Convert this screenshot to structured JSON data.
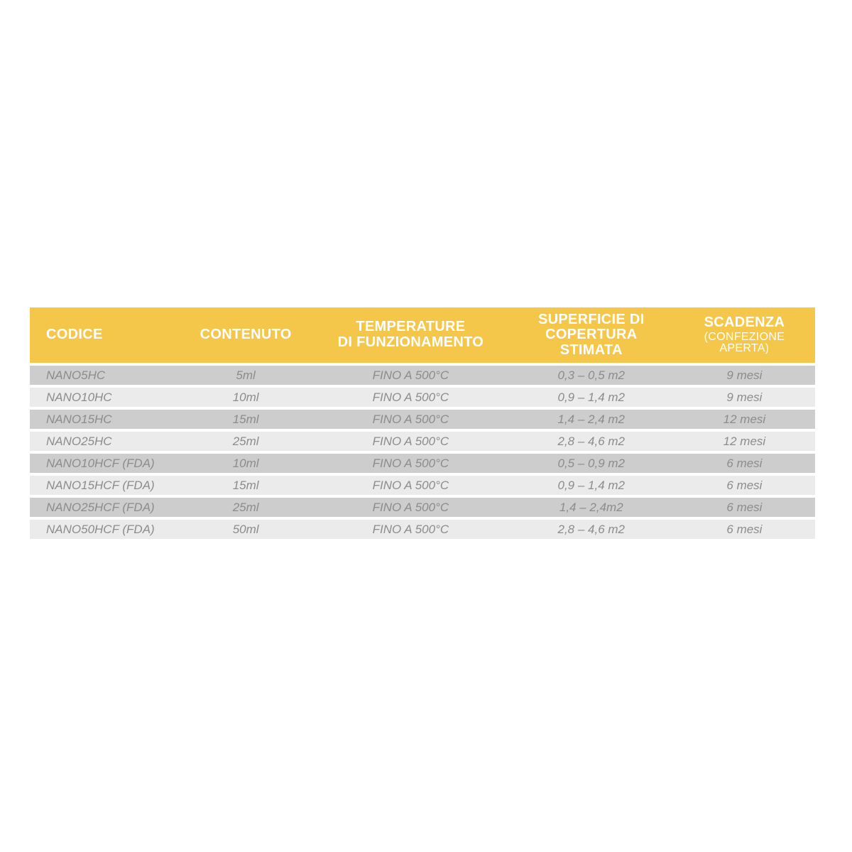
{
  "colors": {
    "header_bg": "#F4C649",
    "header_text": "#FFFFFF",
    "row_dark_bg": "#CDCDCD",
    "row_light_bg": "#EBEBEB",
    "row_text": "#8C8C8C",
    "page_bg": "#FFFFFF"
  },
  "table": {
    "header": {
      "codice": "CODICE",
      "contenuto": "CONTENUTO",
      "temperature_lines": [
        "TEMPERATURE",
        "DI FUNZIONAMENTO"
      ],
      "superficie_lines": [
        "SUPERFICIE DI",
        "COPERTURA",
        "STIMATA"
      ],
      "scadenza": "SCADENZA",
      "scadenza_sub": "(CONFEZIONE APERTA)"
    },
    "rows": [
      {
        "codice": "NANO5HC",
        "contenuto": "5ml",
        "temperature": "FINO A 500°C",
        "superficie": "0,3 – 0,5 m2",
        "scadenza": "9 mesi"
      },
      {
        "codice": "NANO10HC",
        "contenuto": "10ml",
        "temperature": "FINO A 500°C",
        "superficie": "0,9 – 1,4 m2",
        "scadenza": "9 mesi"
      },
      {
        "codice": "NANO15HC",
        "contenuto": "15ml",
        "temperature": "FINO A 500°C",
        "superficie": "1,4 – 2,4 m2",
        "scadenza": "12 mesi"
      },
      {
        "codice": "NANO25HC",
        "contenuto": "25ml",
        "temperature": "FINO A 500°C",
        "superficie": "2,8 – 4,6 m2",
        "scadenza": "12 mesi"
      },
      {
        "codice": "NANO10HCF (FDA)",
        "contenuto": "10ml",
        "temperature": "FINO A 500°C",
        "superficie": "0,5 – 0,9 m2",
        "scadenza": "6 mesi"
      },
      {
        "codice": "NANO15HCF (FDA)",
        "contenuto": "15ml",
        "temperature": "FINO A 500°C",
        "superficie": "0,9 – 1,4 m2",
        "scadenza": "6 mesi"
      },
      {
        "codice": "NANO25HCF (FDA)",
        "contenuto": "25ml",
        "temperature": "FINO A 500°C",
        "superficie": "1,4 – 2,4m2",
        "scadenza": "6 mesi"
      },
      {
        "codice": "NANO50HCF (FDA)",
        "contenuto": "50ml",
        "temperature": "FINO A 500°C",
        "superficie": "2,8 – 4,6 m2",
        "scadenza": "6 mesi"
      }
    ]
  }
}
